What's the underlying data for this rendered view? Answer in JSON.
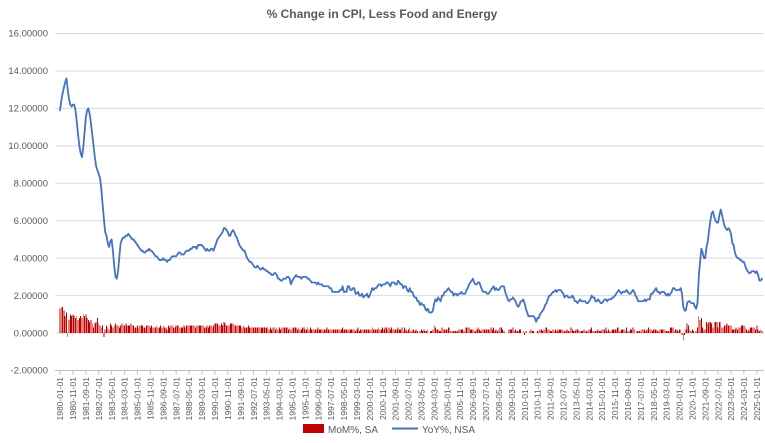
{
  "chart_data": {
    "type": "bar+line combo",
    "title": "% Change in CPI, Less Food and Energy",
    "x_start": "1980-01-01",
    "x_freq": "monthly",
    "ylim": [
      -2,
      16
    ],
    "y_tick_step": 2,
    "grid": true,
    "legend_position": "bottom",
    "y_tick_labels": [
      "-2.00000",
      "0.00000",
      "2.00000",
      "4.00000",
      "6.00000",
      "8.00000",
      "10.00000",
      "12.00000",
      "14.00000",
      "16.00000"
    ],
    "y_tick_values": [
      -2,
      0,
      2,
      4,
      6,
      8,
      10,
      12,
      14,
      16
    ],
    "x_tick_every_months": 10,
    "x_tick_labels": [
      "1980-01-01",
      "1980-11-01",
      "1981-09-01",
      "1982-07-01",
      "1983-05-01",
      "1984-03-01",
      "1985-01-01",
      "1985-11-01",
      "1986-09-01",
      "1987-07-01",
      "1988-05-01",
      "1989-03-01",
      "1990-01-01",
      "1990-11-01",
      "1991-09-01",
      "1992-07-01",
      "1993-05-01",
      "1994-03-01",
      "1995-01-01",
      "1995-11-01",
      "1996-09-01",
      "1997-07-01",
      "1998-05-01",
      "1999-03-01",
      "2000-01-01",
      "2000-11-01",
      "2001-09-01",
      "2002-07-01",
      "2003-05-01",
      "2004-03-01",
      "2005-01-01",
      "2005-11-01",
      "2006-09-01",
      "2007-07-01",
      "2008-05-01",
      "2009-03-01",
      "2010-01-01",
      "2010-11-01",
      "2011-09-01",
      "2012-07-01",
      "2013-05-01",
      "2014-03-01",
      "2015-01-01",
      "2015-11-01",
      "2016-09-01",
      "2017-07-01",
      "2018-05-01",
      "2019-03-01",
      "2020-01-01",
      "2020-11-01",
      "2021-09-01",
      "2022-07-01",
      "2023-05-01",
      "2024-03-01",
      "2025-01-01"
    ],
    "series": [
      {
        "name": "MoM%, SA",
        "type": "bar",
        "color": "#C00000",
        "values": [
          1.3,
          1.4,
          1.4,
          1.2,
          0.9,
          1.1,
          -0.2,
          0.7,
          1.0,
          0.9,
          1.0,
          0.9,
          0.8,
          0.9,
          0.7,
          0.8,
          0.9,
          0.8,
          1.0,
          0.9,
          1.0,
          0.8,
          0.7,
          0.6,
          0.7,
          0.5,
          0.3,
          0.5,
          0.6,
          0.8,
          0.5,
          0.4,
          0.3,
          0.4,
          -0.2,
          0.2,
          0.4,
          0.3,
          0.2,
          0.5,
          0.4,
          0.3,
          0.4,
          0.5,
          0.4,
          0.4,
          0.3,
          0.4,
          0.5,
          0.4,
          0.4,
          0.5,
          0.4,
          0.4,
          0.4,
          0.5,
          0.4,
          0.4,
          0.3,
          0.3,
          0.4,
          0.3,
          0.4,
          0.4,
          0.4,
          0.3,
          0.3,
          0.4,
          0.4,
          0.4,
          0.3,
          0.4,
          0.3,
          0.3,
          0.3,
          0.4,
          0.3,
          0.3,
          0.4,
          0.3,
          0.4,
          0.3,
          0.3,
          0.2,
          0.4,
          0.3,
          0.4,
          0.4,
          0.3,
          0.3,
          0.4,
          0.4,
          0.4,
          0.3,
          0.3,
          0.3,
          0.4,
          0.3,
          0.4,
          0.4,
          0.4,
          0.4,
          0.4,
          0.4,
          0.4,
          0.3,
          0.4,
          0.4,
          0.4,
          0.4,
          0.4,
          0.4,
          0.3,
          0.3,
          0.4,
          0.3,
          0.4,
          0.4,
          0.3,
          0.4,
          0.5,
          0.5,
          0.5,
          0.4,
          0.4,
          0.5,
          0.4,
          0.6,
          0.5,
          0.4,
          0.4,
          0.4,
          0.5,
          0.5,
          0.5,
          0.4,
          0.4,
          0.4,
          0.4,
          0.4,
          0.4,
          0.3,
          0.4,
          0.3,
          0.3,
          0.3,
          0.4,
          0.3,
          0.3,
          0.3,
          0.3,
          0.3,
          0.3,
          0.3,
          0.3,
          0.3,
          0.3,
          0.3,
          0.3,
          0.3,
          0.3,
          0.3,
          0.2,
          0.3,
          0.2,
          0.3,
          0.3,
          0.2,
          0.3,
          0.2,
          0.3,
          0.2,
          0.3,
          0.3,
          0.3,
          0.3,
          0.3,
          0.2,
          0.3,
          0.2,
          0.3,
          0.3,
          0.3,
          0.3,
          0.2,
          0.3,
          0.2,
          0.2,
          0.3,
          0.3,
          0.2,
          0.2,
          0.3,
          0.2,
          0.3,
          0.2,
          0.2,
          0.2,
          0.2,
          0.2,
          0.3,
          0.2,
          0.2,
          0.2,
          0.2,
          0.2,
          0.2,
          0.3,
          0.2,
          0.2,
          0.2,
          0.2,
          0.2,
          0.2,
          0.2,
          0.2,
          0.2,
          0.2,
          0.2,
          0.3,
          0.2,
          0.2,
          0.2,
          0.2,
          0.2,
          0.2,
          0.2,
          0.2,
          0.2,
          0.1,
          0.2,
          0.3,
          0.1,
          0.2,
          0.2,
          0.2,
          0.2,
          0.2,
          0.2,
          0.2,
          0.2,
          0.2,
          0.3,
          0.2,
          0.2,
          0.2,
          0.2,
          0.3,
          0.2,
          0.2,
          0.3,
          0.2,
          0.3,
          0.3,
          0.2,
          0.3,
          0.2,
          0.3,
          0.2,
          0.2,
          0.2,
          0.2,
          0.3,
          0.2,
          0.2,
          0.3,
          0.1,
          0.3,
          0.2,
          0.1,
          0.2,
          0.3,
          0.1,
          0.2,
          0.2,
          0.1,
          0.2,
          0.1,
          0.0,
          0.1,
          0.2,
          0.1,
          0.2,
          0.1,
          0.1,
          0.2,
          0.0,
          0.1,
          0.1,
          0.2,
          0.4,
          0.3,
          0.2,
          0.2,
          0.1,
          0.1,
          0.3,
          0.2,
          0.2,
          0.2,
          0.2,
          0.3,
          0.3,
          0.1,
          0.1,
          0.1,
          0.1,
          0.1,
          0.1,
          0.2,
          0.2,
          0.2,
          0.2,
          0.1,
          0.3,
          0.3,
          0.3,
          0.3,
          0.2,
          0.2,
          0.2,
          0.1,
          0.1,
          0.2,
          0.3,
          0.2,
          0.1,
          0.2,
          0.2,
          0.2,
          0.2,
          0.2,
          0.2,
          0.2,
          0.3,
          0.2,
          0.3,
          0.1,
          0.2,
          0.1,
          0.2,
          0.3,
          0.3,
          0.2,
          0.1,
          0.0,
          0.0,
          0.0,
          0.2,
          0.2,
          0.2,
          0.3,
          0.1,
          0.2,
          0.1,
          0.1,
          0.2,
          0.2,
          0.0,
          0.1,
          -0.1,
          0.1,
          0.0,
          0.0,
          0.1,
          0.2,
          0.1,
          0.1,
          0.0,
          0.0,
          0.1,
          0.1,
          0.2,
          0.2,
          0.1,
          0.2,
          0.3,
          0.3,
          0.2,
          0.2,
          0.1,
          0.1,
          0.2,
          0.1,
          0.2,
          0.1,
          0.2,
          0.2,
          0.2,
          0.2,
          0.1,
          0.1,
          0.1,
          0.2,
          0.1,
          0.1,
          0.3,
          0.2,
          0.1,
          0.1,
          0.2,
          0.2,
          0.2,
          0.1,
          0.1,
          0.1,
          0.2,
          0.1,
          0.1,
          0.1,
          0.2,
          0.2,
          0.3,
          0.1,
          0.1,
          0.1,
          0.1,
          0.2,
          0.1,
          0.1,
          0.2,
          0.2,
          0.2,
          0.3,
          0.1,
          0.2,
          0.1,
          0.1,
          0.2,
          0.2,
          0.2,
          0.2,
          0.3,
          0.3,
          0.1,
          0.2,
          0.2,
          0.2,
          0.1,
          0.3,
          0.1,
          0.1,
          0.2,
          0.2,
          0.3,
          0.2,
          0.0,
          0.1,
          0.1,
          0.1,
          0.1,
          0.2,
          0.2,
          0.2,
          0.1,
          0.2,
          0.3,
          0.2,
          0.2,
          0.1,
          0.2,
          0.2,
          0.2,
          0.1,
          0.1,
          0.2,
          0.2,
          0.2,
          0.2,
          0.1,
          0.1,
          0.1,
          0.1,
          0.3,
          0.3,
          0.3,
          0.1,
          0.2,
          0.2,
          0.1,
          0.2,
          0.2,
          -0.1,
          -0.4,
          -0.1,
          0.2,
          0.5,
          0.4,
          0.2,
          0.1,
          0.2,
          0.1,
          0.0,
          0.1,
          0.3,
          0.9,
          0.7,
          0.8,
          0.3,
          0.2,
          0.2,
          0.6,
          0.5,
          0.6,
          0.6,
          0.5,
          0.3,
          0.6,
          0.6,
          0.6,
          0.3,
          0.6,
          0.6,
          0.3,
          0.3,
          0.4,
          0.4,
          0.5,
          0.4,
          0.4,
          0.4,
          0.2,
          0.2,
          0.2,
          0.3,
          0.2,
          0.3,
          0.3,
          0.4,
          0.4,
          0.4,
          0.3,
          0.2,
          0.1,
          0.2,
          0.3,
          0.3,
          0.3,
          0.3,
          0.2,
          0.4,
          0.2,
          0.1,
          0.2,
          0.1
        ]
      },
      {
        "name": "YoY%, NSA",
        "type": "line",
        "color": "#4472C4",
        "values": [
          11.9,
          12.4,
          12.8,
          13.1,
          13.4,
          13.6,
          13.0,
          12.5,
          12.2,
          12.1,
          12.2,
          12.2,
          11.9,
          11.3,
          10.6,
          10.0,
          9.6,
          9.4,
          9.9,
          10.7,
          11.5,
          11.9,
          12.0,
          11.7,
          11.2,
          10.6,
          10.0,
          9.4,
          8.9,
          8.7,
          8.5,
          8.3,
          7.7,
          6.9,
          6.1,
          5.4,
          5.2,
          4.8,
          4.6,
          4.9,
          5.0,
          4.4,
          3.6,
          3.0,
          2.9,
          3.3,
          4.1,
          4.8,
          5.0,
          5.1,
          5.1,
          5.2,
          5.2,
          5.3,
          5.2,
          5.1,
          5.0,
          5.0,
          4.9,
          4.8,
          4.7,
          4.6,
          4.5,
          4.4,
          4.4,
          4.3,
          4.3,
          4.4,
          4.4,
          4.5,
          4.4,
          4.4,
          4.3,
          4.2,
          4.1,
          4.1,
          4.0,
          3.9,
          3.9,
          3.9,
          4.0,
          3.9,
          3.9,
          3.8,
          3.9,
          3.9,
          4.0,
          4.1,
          4.1,
          4.1,
          4.1,
          4.2,
          4.3,
          4.3,
          4.2,
          4.2,
          4.2,
          4.3,
          4.4,
          4.4,
          4.4,
          4.5,
          4.5,
          4.6,
          4.6,
          4.6,
          4.5,
          4.7,
          4.7,
          4.7,
          4.7,
          4.6,
          4.5,
          4.4,
          4.5,
          4.4,
          4.4,
          4.5,
          4.5,
          4.4,
          4.6,
          4.8,
          5.0,
          5.1,
          5.2,
          5.3,
          5.4,
          5.6,
          5.6,
          5.5,
          5.4,
          5.2,
          5.2,
          5.4,
          5.5,
          5.4,
          5.2,
          5.1,
          4.9,
          4.7,
          4.6,
          4.5,
          4.4,
          4.4,
          4.2,
          4.0,
          3.9,
          3.8,
          3.8,
          3.7,
          3.6,
          3.5,
          3.5,
          3.6,
          3.5,
          3.4,
          3.4,
          3.5,
          3.4,
          3.4,
          3.3,
          3.3,
          3.2,
          3.2,
          3.1,
          3.1,
          3.2,
          3.2,
          3.1,
          2.9,
          2.9,
          2.8,
          2.8,
          2.9,
          2.9,
          2.9,
          3.0,
          3.0,
          2.9,
          2.6,
          2.8,
          2.9,
          3.0,
          3.1,
          3.0,
          3.0,
          3.0,
          2.9,
          3.0,
          3.0,
          3.0,
          3.0,
          2.9,
          2.9,
          2.8,
          2.7,
          2.7,
          2.7,
          2.7,
          2.6,
          2.7,
          2.6,
          2.6,
          2.6,
          2.5,
          2.5,
          2.5,
          2.5,
          2.5,
          2.4,
          2.4,
          2.2,
          2.2,
          2.2,
          2.2,
          2.2,
          2.2,
          2.3,
          2.3,
          2.5,
          2.2,
          2.2,
          2.2,
          2.5,
          2.5,
          2.3,
          2.3,
          2.4,
          2.4,
          2.1,
          2.1,
          2.2,
          2.0,
          2.0,
          2.1,
          1.9,
          2.0,
          2.0,
          2.1,
          1.9,
          2.0,
          2.2,
          2.4,
          2.3,
          2.4,
          2.4,
          2.5,
          2.6,
          2.6,
          2.5,
          2.6,
          2.6,
          2.6,
          2.7,
          2.7,
          2.6,
          2.5,
          2.7,
          2.7,
          2.7,
          2.6,
          2.6,
          2.8,
          2.7,
          2.6,
          2.6,
          2.4,
          2.5,
          2.5,
          2.3,
          2.2,
          2.4,
          2.2,
          2.2,
          2.0,
          1.9,
          1.9,
          1.7,
          1.7,
          1.5,
          1.6,
          1.5,
          1.5,
          1.3,
          1.2,
          1.3,
          1.1,
          1.1,
          1.1,
          1.2,
          1.6,
          1.8,
          1.7,
          1.9,
          1.8,
          1.7,
          2.0,
          2.0,
          2.2,
          2.2,
          2.3,
          2.4,
          2.3,
          2.2,
          2.2,
          2.0,
          2.1,
          2.1,
          2.0,
          2.1,
          2.1,
          2.2,
          2.1,
          2.1,
          2.1,
          2.3,
          2.4,
          2.6,
          2.7,
          2.8,
          2.9,
          2.7,
          2.6,
          2.6,
          2.7,
          2.7,
          2.5,
          2.3,
          2.2,
          2.2,
          2.2,
          2.1,
          2.1,
          2.2,
          2.3,
          2.4,
          2.5,
          2.3,
          2.4,
          2.3,
          2.3,
          2.4,
          2.5,
          2.5,
          2.5,
          2.2,
          2.0,
          1.8,
          1.7,
          1.8,
          1.8,
          1.9,
          1.8,
          1.7,
          1.5,
          1.4,
          1.5,
          1.7,
          1.7,
          1.8,
          1.6,
          1.3,
          1.1,
          0.9,
          0.9,
          0.9,
          0.9,
          0.9,
          0.8,
          0.6,
          0.8,
          0.8,
          1.0,
          1.1,
          1.2,
          1.3,
          1.5,
          1.6,
          1.8,
          2.0,
          2.0,
          2.1,
          2.2,
          2.2,
          2.3,
          2.2,
          2.3,
          2.3,
          2.3,
          2.2,
          2.1,
          1.9,
          2.0,
          2.0,
          1.9,
          1.9,
          1.9,
          2.0,
          1.9,
          1.7,
          1.7,
          1.6,
          1.7,
          1.8,
          1.7,
          1.7,
          1.7,
          1.7,
          1.6,
          1.6,
          1.7,
          1.8,
          2.0,
          1.9,
          1.9,
          1.7,
          1.7,
          1.8,
          1.7,
          1.6,
          1.6,
          1.7,
          1.8,
          1.8,
          1.7,
          1.8,
          1.8,
          1.8,
          1.9,
          1.9,
          2.0,
          2.1,
          2.2,
          2.3,
          2.2,
          2.1,
          2.2,
          2.2,
          2.2,
          2.3,
          2.2,
          2.1,
          2.1,
          2.2,
          2.3,
          2.2,
          2.0,
          1.9,
          1.7,
          1.7,
          1.7,
          1.7,
          1.7,
          1.8,
          1.7,
          1.8,
          1.8,
          1.8,
          2.1,
          2.1,
          2.2,
          2.3,
          2.4,
          2.2,
          2.2,
          2.1,
          2.2,
          2.2,
          2.2,
          2.1,
          2.0,
          2.1,
          2.0,
          2.1,
          2.2,
          2.4,
          2.4,
          2.3,
          2.3,
          2.3,
          2.3,
          2.4,
          2.1,
          1.4,
          1.2,
          1.2,
          1.6,
          1.7,
          1.7,
          1.6,
          1.6,
          1.6,
          1.4,
          1.3,
          1.6,
          3.0,
          3.8,
          4.5,
          4.3,
          4.0,
          4.0,
          4.6,
          4.9,
          5.5,
          6.0,
          6.4,
          6.5,
          6.2,
          6.0,
          5.9,
          5.9,
          6.3,
          6.6,
          6.3,
          6.0,
          5.7,
          5.6,
          5.5,
          5.6,
          5.5,
          5.3,
          4.8,
          4.7,
          4.3,
          4.1,
          4.0,
          4.0,
          3.9,
          3.9,
          3.8,
          3.8,
          3.6,
          3.4,
          3.3,
          3.2,
          3.2,
          3.3,
          3.3,
          3.3,
          3.2,
          3.3,
          3.1,
          2.8,
          2.8,
          2.9
        ]
      }
    ],
    "style": {
      "gridline_color": "#D9D9D9",
      "axis_color": "#BFBFBF",
      "label_color": "#595959",
      "title_color": "#595959",
      "background": "#FFFFFF",
      "line_width": 1.8,
      "bar_width": 0.9
    }
  }
}
